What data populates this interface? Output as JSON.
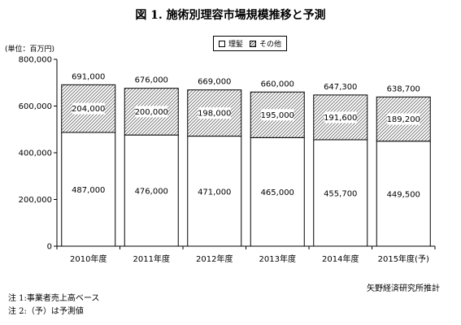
{
  "title": "図 1.  施術別理容市場規模推移と予測",
  "unit_label": "(単位：百万円)",
  "legend": {
    "items": [
      {
        "label": "理髪"
      },
      {
        "label": "その他"
      }
    ]
  },
  "source": "矢野経済研究所推計",
  "notes": [
    "注 1:事業者売上高ベース",
    "注 2:（予）は予測値"
  ],
  "chart_data": {
    "type": "bar",
    "stacked": true,
    "categories": [
      "2010年度",
      "2011年度",
      "2012年度",
      "2013年度",
      "2014年度",
      "2015年度(予)"
    ],
    "series": [
      {
        "name": "理髪",
        "values": [
          487000,
          476000,
          471000,
          465000,
          455700,
          449500
        ],
        "labels": [
          "487,000",
          "476,000",
          "471,000",
          "465,000",
          "455,700",
          "449,500"
        ]
      },
      {
        "name": "その他",
        "values": [
          204000,
          200000,
          198000,
          195000,
          191600,
          189200
        ],
        "labels": [
          "204,000",
          "200,000",
          "198,000",
          "195,000",
          "191,600",
          "189,200"
        ]
      }
    ],
    "totals": [
      691000,
      676000,
      669000,
      660000,
      647300,
      638700
    ],
    "total_labels": [
      "691,000",
      "676,000",
      "669,000",
      "660,000",
      "647,300",
      "638,700"
    ],
    "ylim": [
      0,
      800000
    ],
    "yticks": [
      0,
      200000,
      400000,
      600000,
      800000
    ],
    "ytick_labels": [
      "0",
      "200,000",
      "400,000",
      "600,000",
      "800,000"
    ],
    "grid": false,
    "legend_position": "top-center"
  }
}
